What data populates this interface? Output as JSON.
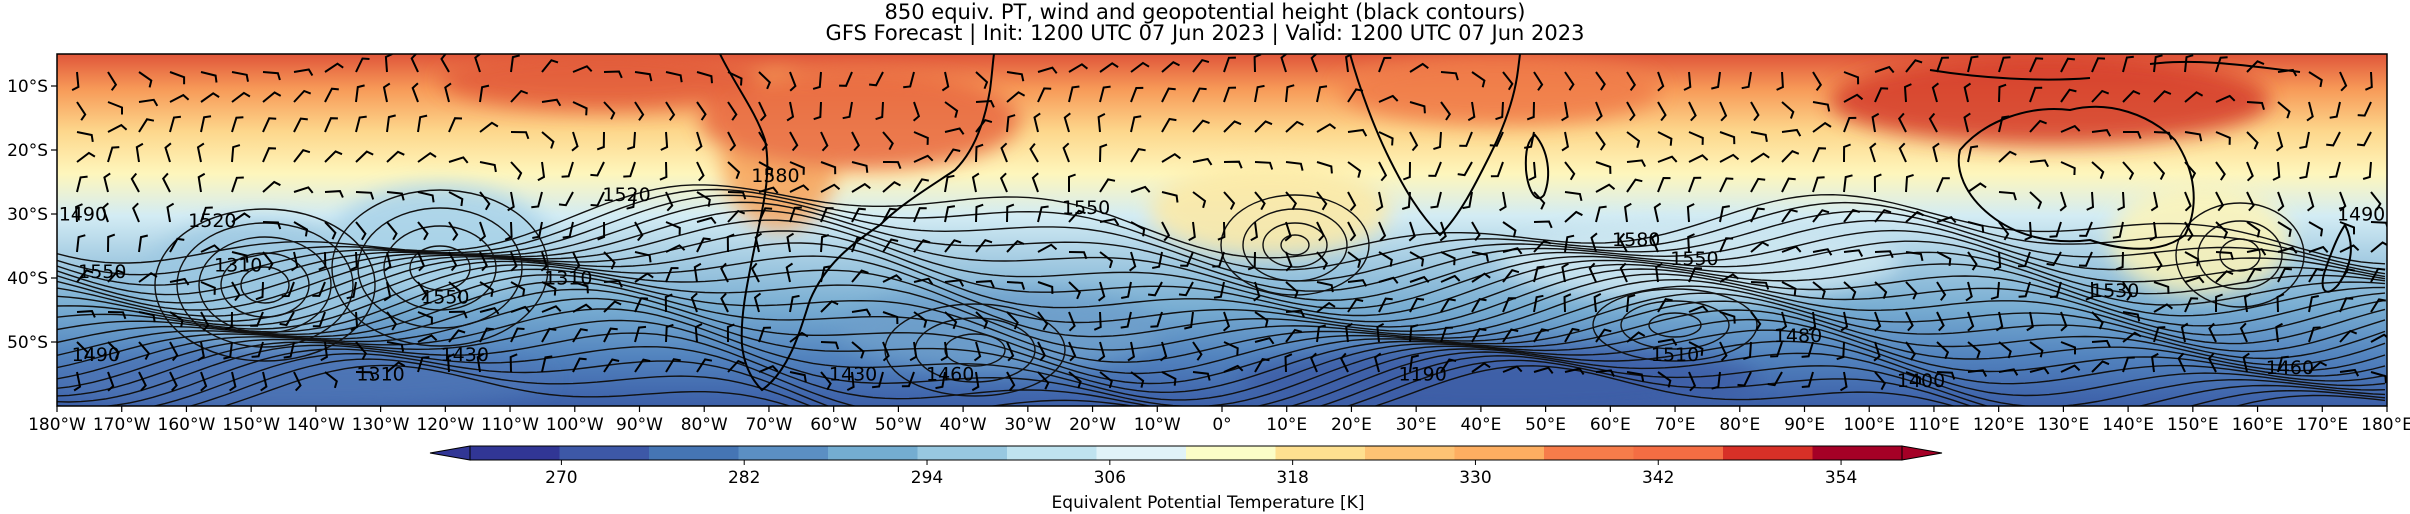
{
  "header": {
    "title_line1": "850 equiv. PT, wind and geopotential height (black contours)",
    "title_line2": "GFS Forecast | Init: 1200 UTC 07 Jun 2023 | Valid: 1200 UTC 07 Jun 2023"
  },
  "map": {
    "lon_range": [
      -180,
      180
    ],
    "lat_range": [
      -60,
      -5
    ],
    "lon_ticks": [
      "180°W",
      "170°W",
      "160°W",
      "150°W",
      "140°W",
      "130°W",
      "120°W",
      "110°W",
      "100°W",
      "90°W",
      "80°W",
      "70°W",
      "60°W",
      "50°W",
      "40°W",
      "30°W",
      "20°W",
      "10°W",
      "0°",
      "10°E",
      "20°E",
      "30°E",
      "40°E",
      "50°E",
      "60°E",
      "70°E",
      "80°E",
      "90°E",
      "100°E",
      "110°E",
      "120°E",
      "130°E",
      "140°E",
      "150°E",
      "160°E",
      "170°E",
      "180°E"
    ],
    "lat_ticks": [
      {
        "lat": -10,
        "label": "10°S"
      },
      {
        "lat": -20,
        "label": "20°S"
      },
      {
        "lat": -30,
        "label": "30°S"
      },
      {
        "lat": -40,
        "label": "40°S"
      },
      {
        "lat": -50,
        "label": "50°S"
      }
    ],
    "contour_labels": [
      {
        "text": "1490",
        "lon": -176,
        "lat": -31
      },
      {
        "text": "1520",
        "lon": -156,
        "lat": -32
      },
      {
        "text": "1550",
        "lon": -173,
        "lat": -40
      },
      {
        "text": "1490",
        "lon": -174,
        "lat": -53
      },
      {
        "text": "1310",
        "lon": -152,
        "lat": -39
      },
      {
        "text": "1550",
        "lon": -120,
        "lat": -44
      },
      {
        "text": "1430",
        "lon": -117,
        "lat": -53
      },
      {
        "text": "1310",
        "lon": -130,
        "lat": -56
      },
      {
        "text": "1310",
        "lon": -101,
        "lat": -41
      },
      {
        "text": "1520",
        "lon": -92,
        "lat": -28
      },
      {
        "text": "1580",
        "lon": -69,
        "lat": -25
      },
      {
        "text": "1430",
        "lon": -57,
        "lat": -56
      },
      {
        "text": "1460",
        "lon": -42,
        "lat": -56
      },
      {
        "text": "1550",
        "lon": -21,
        "lat": -30
      },
      {
        "text": "1190",
        "lon": 31,
        "lat": -56
      },
      {
        "text": "1580",
        "lon": 64,
        "lat": -35
      },
      {
        "text": "1550",
        "lon": 73,
        "lat": -38
      },
      {
        "text": "1510",
        "lon": 70,
        "lat": -53
      },
      {
        "text": "1480",
        "lon": 89,
        "lat": -50
      },
      {
        "text": "1400",
        "lon": 108,
        "lat": -57
      },
      {
        "text": "1530",
        "lon": 138,
        "lat": -43
      },
      {
        "text": "1490",
        "lon": 176,
        "lat": -31
      },
      {
        "text": "1460",
        "lon": 165,
        "lat": -55
      }
    ]
  },
  "colorbar": {
    "label": "Equivalent Potential Temperature [K]",
    "range": [
      264,
      358
    ],
    "tick_values": [
      270,
      282,
      294,
      306,
      318,
      330,
      342,
      354
    ],
    "tick_labels": [
      "270",
      "282",
      "294",
      "306",
      "318",
      "330",
      "342",
      "354"
    ],
    "colors": [
      "#313695",
      "#3d58a7",
      "#4575b4",
      "#5b8fc3",
      "#74add1",
      "#98c8e0",
      "#bfe3ef",
      "#e0f3f8",
      "#fbfdc7",
      "#fee090",
      "#fdc374",
      "#fdae61",
      "#f67c4a",
      "#f46d43",
      "#d73027",
      "#a50026"
    ]
  }
}
